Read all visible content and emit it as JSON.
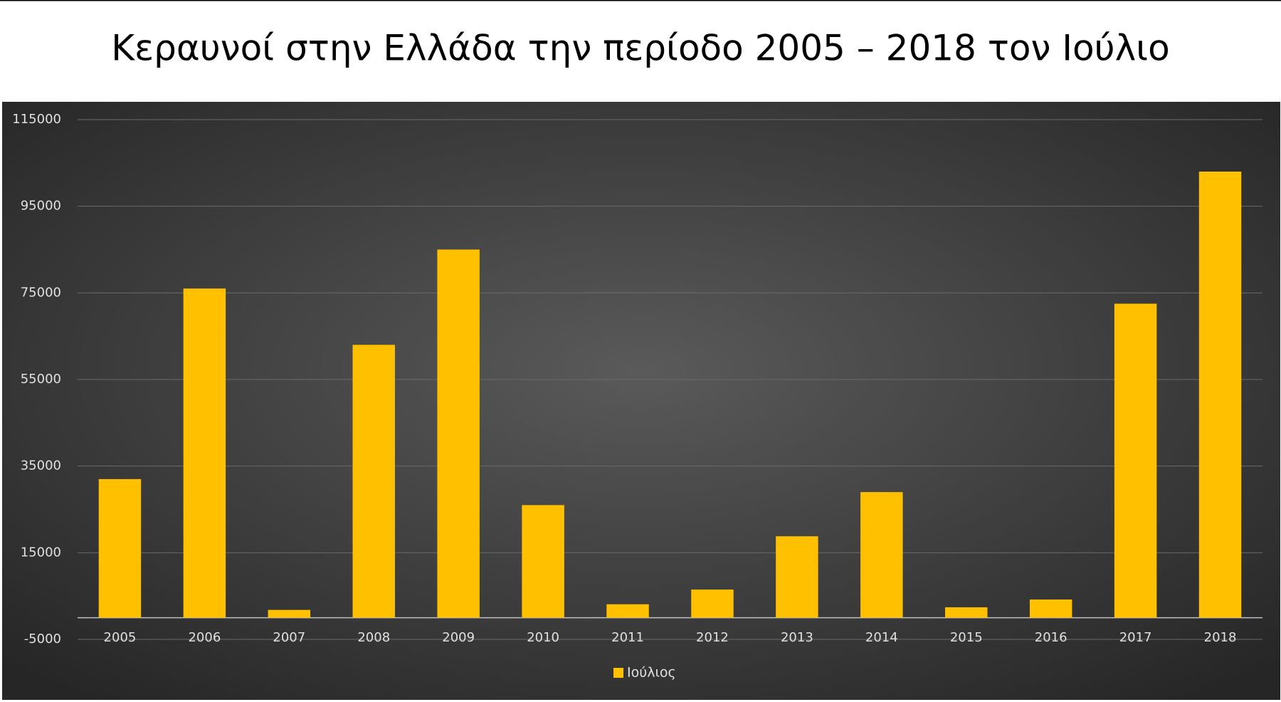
{
  "chart_data": {
    "type": "bar",
    "title": "Κεραυνοί στην Ελλάδα την περίοδο 2005 – 2018 τον Ιούλιο",
    "categories": [
      "2005",
      "2006",
      "2007",
      "2008",
      "2009",
      "2010",
      "2011",
      "2012",
      "2013",
      "2014",
      "2015",
      "2016",
      "2017",
      "2018"
    ],
    "series": [
      {
        "name": "Ιούλιος",
        "color": "#ffc000",
        "values": [
          32000,
          76000,
          1800,
          63000,
          85000,
          26000,
          3100,
          6500,
          18800,
          29000,
          2400,
          4200,
          72500,
          103000
        ]
      }
    ],
    "ylim": [
      -5000,
      115000
    ],
    "yticks": [
      -5000,
      15000,
      35000,
      55000,
      75000,
      95000,
      115000
    ],
    "grid": true,
    "legend": "bottom"
  }
}
